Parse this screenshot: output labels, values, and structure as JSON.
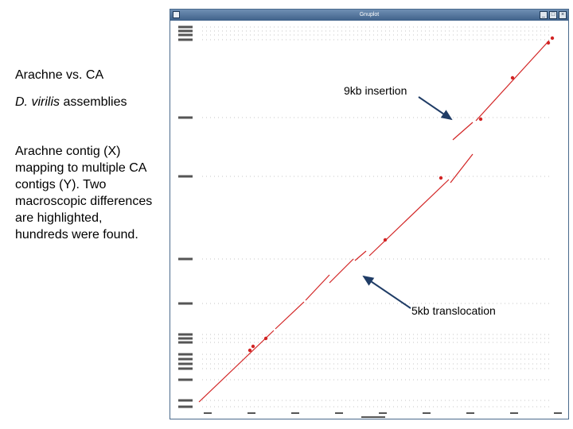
{
  "slide": {
    "title": "Arachne vs. CA",
    "subtitle_italic": "D. virilis",
    "subtitle_rest": " assemblies",
    "description": "Arachne contig (X) mapping to multiple CA contigs (Y). Two macroscopic differences are highlighted, hundreds were found."
  },
  "annotations": {
    "insertion": "9kb insertion",
    "translocation": "5kb translocation"
  },
  "window": {
    "title": "Gnuplot",
    "buttons": [
      "minimize",
      "maximize",
      "close"
    ]
  },
  "colors": {
    "dots": "#d22424",
    "arrow": "#1f3c66",
    "titlebar": "#4a6d96"
  },
  "icons": {
    "minimize": "minimize-icon",
    "maximize": "maximize-icon",
    "close": "close-icon"
  }
}
